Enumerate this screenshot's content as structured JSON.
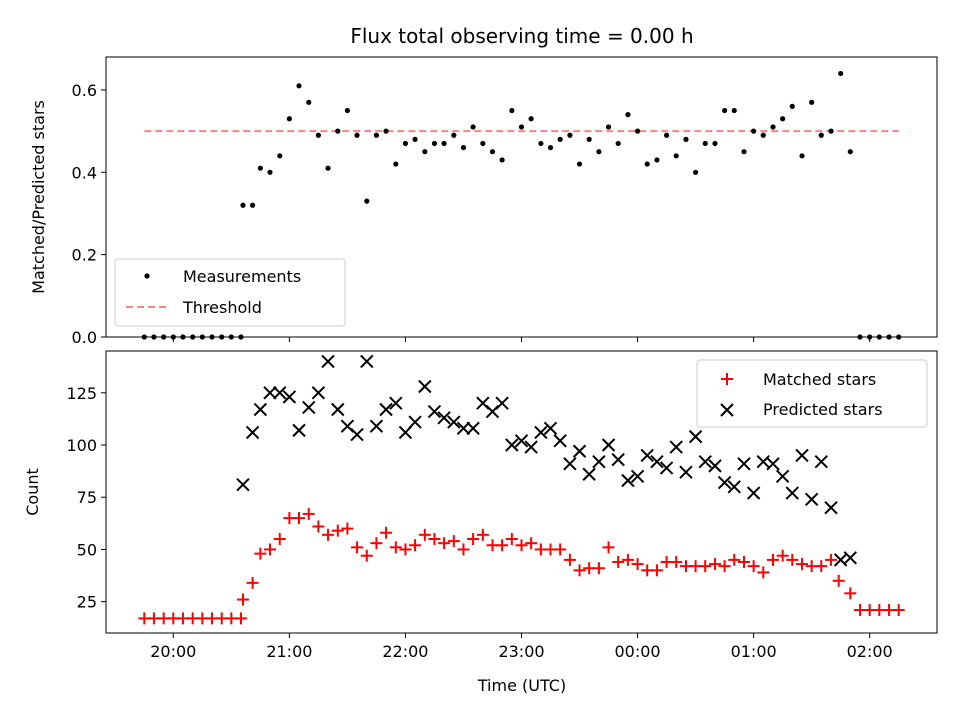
{
  "chart_data": [
    {
      "type": "scatter",
      "title": "Flux total observing time = 0.00 h",
      "xlabel": "",
      "ylabel": "Matched/Predicted stars",
      "ylim": [
        0,
        0.68
      ],
      "yticks": [
        "0.0",
        "0.2",
        "0.4",
        "0.6"
      ],
      "ytick_values": [
        0,
        0.2,
        0.4,
        0.6
      ],
      "xlim": [
        -0.58,
        6.58
      ],
      "xtick_values": [
        0,
        1,
        2,
        3,
        4,
        5,
        6
      ],
      "threshold": {
        "name": "Threshold",
        "value": 0.5,
        "x": [
          -0.25,
          6.25
        ],
        "color": "#ff8080"
      },
      "series": [
        {
          "name": "Measurements",
          "color": "#000000",
          "x": [
            -0.25,
            -0.167,
            -0.083,
            0.0,
            0.083,
            0.167,
            0.25,
            0.333,
            0.417,
            0.5,
            0.583,
            0.6,
            0.683,
            0.75,
            0.833,
            0.917,
            1.0,
            1.083,
            1.167,
            1.25,
            1.333,
            1.417,
            1.5,
            1.583,
            1.667,
            1.75,
            1.833,
            1.917,
            2.0,
            2.083,
            2.167,
            2.25,
            2.333,
            2.417,
            2.5,
            2.583,
            2.667,
            2.75,
            2.833,
            2.917,
            3.0,
            3.083,
            3.167,
            3.25,
            3.333,
            3.417,
            3.5,
            3.583,
            3.667,
            3.75,
            3.833,
            3.917,
            4.0,
            4.083,
            4.167,
            4.25,
            4.333,
            4.417,
            4.5,
            4.583,
            4.667,
            4.75,
            4.833,
            4.917,
            5.0,
            5.083,
            5.167,
            5.25,
            5.333,
            5.417,
            5.5,
            5.583,
            5.667,
            5.75,
            5.833,
            5.917,
            6.0,
            6.083,
            6.167,
            6.25
          ],
          "y": [
            0,
            0,
            0,
            0,
            0,
            0,
            0,
            0,
            0,
            0,
            0,
            0.32,
            0.32,
            0.41,
            0.4,
            0.44,
            0.53,
            0.61,
            0.57,
            0.49,
            0.41,
            0.5,
            0.55,
            0.49,
            0.33,
            0.49,
            0.5,
            0.42,
            0.47,
            0.48,
            0.45,
            0.47,
            0.47,
            0.49,
            0.46,
            0.51,
            0.47,
            0.45,
            0.43,
            0.55,
            0.51,
            0.53,
            0.47,
            0.46,
            0.48,
            0.49,
            0.42,
            0.48,
            0.45,
            0.51,
            0.47,
            0.54,
            0.5,
            0.42,
            0.43,
            0.49,
            0.44,
            0.48,
            0.4,
            0.47,
            0.47,
            0.55,
            0.55,
            0.45,
            0.5,
            0.49,
            0.51,
            0.53,
            0.56,
            0.44,
            0.57,
            0.49,
            0.5,
            0.64,
            0.45,
            0,
            0,
            0,
            0,
            0
          ]
        }
      ],
      "legend": [
        "Measurements",
        "Threshold"
      ],
      "legend_position": "lower-left"
    },
    {
      "type": "scatter",
      "title": "",
      "xlabel": "Time (UTC)",
      "ylabel": "Count",
      "ylim": [
        10,
        145
      ],
      "yticks": [
        "25",
        "50",
        "75",
        "100",
        "125"
      ],
      "ytick_values": [
        25,
        50,
        75,
        100,
        125
      ],
      "xlim": [
        -0.58,
        6.58
      ],
      "xtick_values": [
        0,
        1,
        2,
        3,
        4,
        5,
        6
      ],
      "xticks": [
        "20:00",
        "21:00",
        "22:00",
        "23:00",
        "00:00",
        "01:00",
        "02:00"
      ],
      "series": [
        {
          "name": "Matched stars",
          "color": "#ff0000",
          "marker": "plus",
          "x": [
            -0.25,
            -0.167,
            -0.083,
            0.0,
            0.083,
            0.167,
            0.25,
            0.333,
            0.417,
            0.5,
            0.583,
            0.6,
            0.683,
            0.75,
            0.833,
            0.917,
            1.0,
            1.083,
            1.167,
            1.25,
            1.333,
            1.417,
            1.5,
            1.583,
            1.667,
            1.75,
            1.833,
            1.917,
            2.0,
            2.083,
            2.167,
            2.25,
            2.333,
            2.417,
            2.5,
            2.583,
            2.667,
            2.75,
            2.833,
            2.917,
            3.0,
            3.083,
            3.167,
            3.25,
            3.333,
            3.417,
            3.5,
            3.583,
            3.667,
            3.75,
            3.833,
            3.917,
            4.0,
            4.083,
            4.167,
            4.25,
            4.333,
            4.417,
            4.5,
            4.583,
            4.667,
            4.75,
            4.833,
            4.917,
            5.0,
            5.083,
            5.167,
            5.25,
            5.333,
            5.417,
            5.5,
            5.583,
            5.667,
            5.733,
            5.833,
            5.917,
            6.0,
            6.083,
            6.167,
            6.25
          ],
          "y": [
            17,
            17,
            17,
            17,
            17,
            17,
            17,
            17,
            17,
            17,
            17,
            26,
            34,
            48,
            50,
            55,
            65,
            65,
            67,
            61,
            57,
            59,
            60,
            51,
            47,
            53,
            58,
            51,
            50,
            52,
            57,
            55,
            53,
            54,
            50,
            55,
            57,
            52,
            52,
            55,
            52,
            53,
            50,
            50,
            50,
            45,
            40,
            41,
            41,
            51,
            44,
            45,
            43,
            40,
            40,
            44,
            44,
            42,
            42,
            42,
            43,
            42,
            45,
            44,
            42,
            39,
            45,
            47,
            45,
            43,
            42,
            42,
            45,
            35,
            29,
            21,
            21,
            21,
            21,
            21
          ]
        },
        {
          "name": "Predicted stars",
          "color": "#000000",
          "marker": "x",
          "x": [
            0.6,
            0.683,
            0.75,
            0.833,
            0.917,
            1.0,
            1.083,
            1.167,
            1.25,
            1.333,
            1.417,
            1.5,
            1.583,
            1.667,
            1.75,
            1.833,
            1.917,
            2.0,
            2.083,
            2.167,
            2.25,
            2.333,
            2.417,
            2.5,
            2.583,
            2.667,
            2.75,
            2.833,
            2.917,
            3.0,
            3.083,
            3.167,
            3.25,
            3.333,
            3.417,
            3.5,
            3.583,
            3.667,
            3.75,
            3.833,
            3.917,
            4.0,
            4.083,
            4.167,
            4.25,
            4.333,
            4.417,
            4.5,
            4.583,
            4.667,
            4.75,
            4.833,
            4.917,
            5.0,
            5.083,
            5.167,
            5.25,
            5.333,
            5.417,
            5.5,
            5.583,
            5.667,
            5.75,
            5.833
          ],
          "y": [
            81,
            106,
            117,
            125,
            125,
            123,
            107,
            118,
            125,
            140,
            117,
            109,
            105,
            140,
            109,
            117,
            120,
            106,
            111,
            128,
            116,
            113,
            111,
            108,
            108,
            120,
            116,
            120,
            100,
            102,
            99,
            106,
            108,
            102,
            91,
            97,
            86,
            92,
            100,
            93,
            83,
            85,
            95,
            92,
            89,
            99,
            87,
            104,
            92,
            90,
            82,
            80,
            91,
            77,
            92,
            91,
            85,
            77,
            95,
            74,
            92,
            70,
            45,
            46
          ]
        }
      ],
      "legend": [
        "Matched stars",
        "Predicted stars"
      ],
      "legend_position": "top-right"
    }
  ]
}
